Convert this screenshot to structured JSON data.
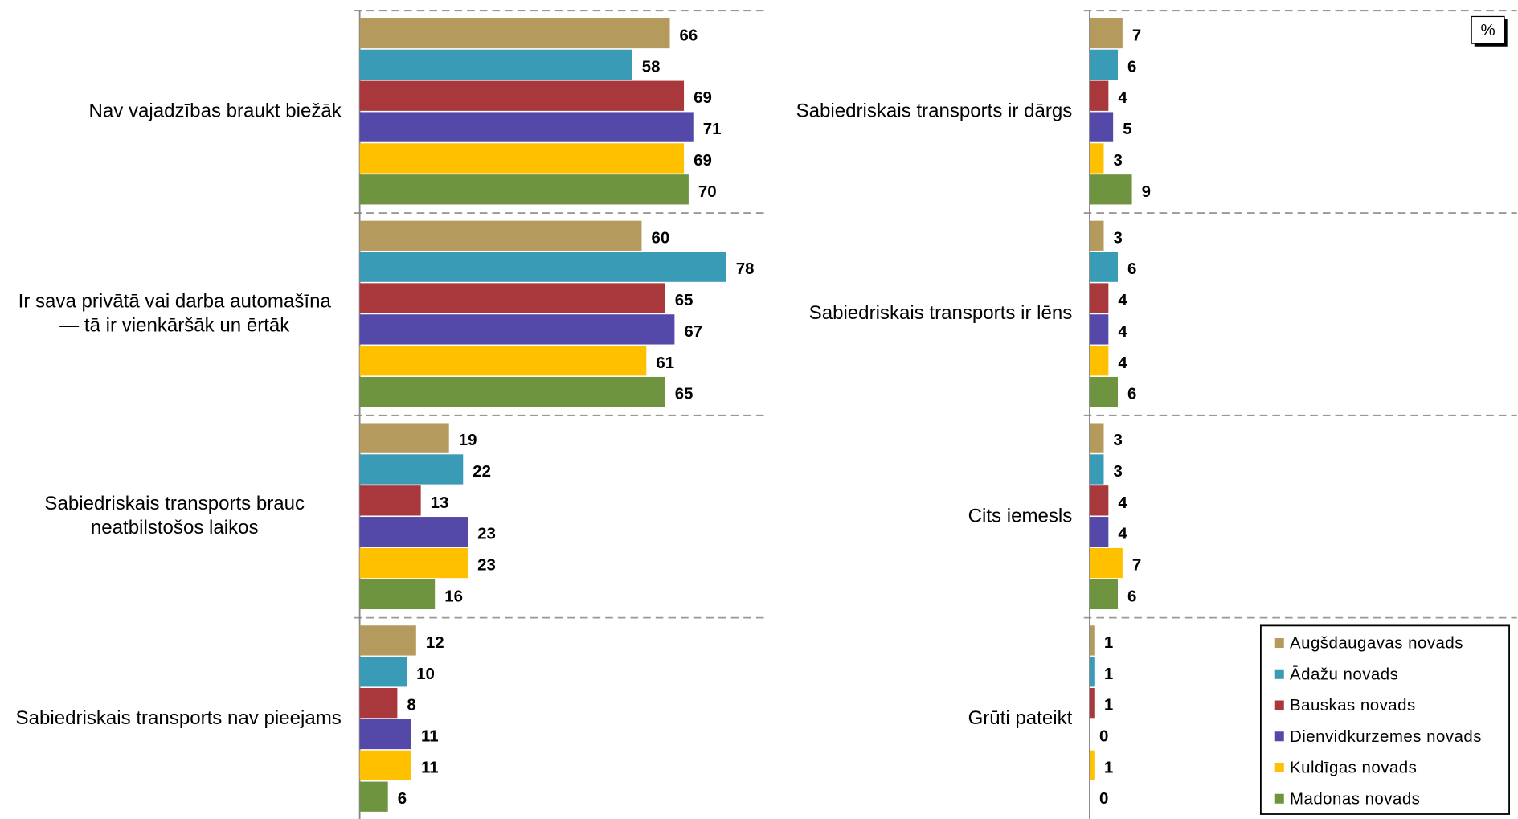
{
  "chart_data": {
    "type": "bar",
    "orientation": "horizontal",
    "unit_label": "%",
    "categories": [
      "Nav vajadzības braukt biežāk",
      "Ir sava privātā vai darba automašīna — tā ir vienkāršāk un ērtāk",
      "Sabiedriskais transports brauc neatbilstošos laikos",
      "Sabiedriskais transports nav pieejams",
      "Sabiedriskais transports ir dārgs",
      "Sabiedriskais transports ir lēns",
      "Cits iemesls",
      "Grūti pateikt"
    ],
    "series": [
      {
        "name": "Augšdaugavas novads",
        "color": "#b59a5e",
        "values": [
          66,
          60,
          19,
          12,
          7,
          3,
          3,
          1
        ]
      },
      {
        "name": "Ādažu novads",
        "color": "#3a9bb6",
        "values": [
          58,
          78,
          22,
          10,
          6,
          6,
          3,
          1
        ]
      },
      {
        "name": "Bauskas novads",
        "color": "#a8383b",
        "values": [
          69,
          65,
          13,
          8,
          4,
          4,
          4,
          1
        ]
      },
      {
        "name": "Dienvidkurzemes novads",
        "color": "#5449a8",
        "values": [
          71,
          67,
          23,
          11,
          5,
          4,
          4,
          0
        ]
      },
      {
        "name": "Kuldīgas novads",
        "color": "#ffc000",
        "values": [
          69,
          61,
          23,
          11,
          3,
          4,
          7,
          1
        ]
      },
      {
        "name": "Madonas novads",
        "color": "#6f9440",
        "values": [
          70,
          65,
          16,
          6,
          9,
          6,
          6,
          0
        ]
      }
    ],
    "xlim": [
      0,
      100
    ],
    "legend": "bottom-right"
  }
}
